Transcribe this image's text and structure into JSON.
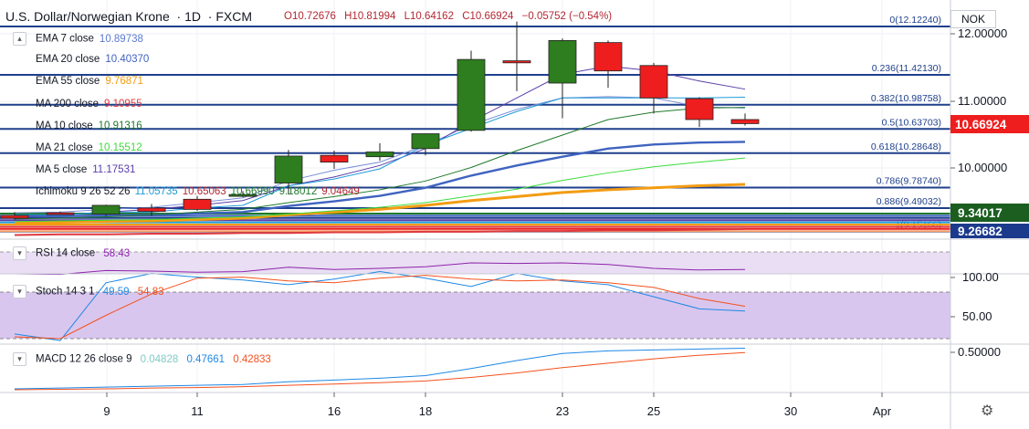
{
  "header": {
    "symbol": "U.S. Dollar/Norwegian Krone",
    "interval": "1D",
    "exchange": "FXCM",
    "open": "O10.72676",
    "high": "H10.81994",
    "low": "L10.64162",
    "close": "C10.66924",
    "change": "−0.05752 (−0.54%)"
  },
  "currency": "NOK",
  "legend": [
    {
      "label": "EMA 7 close",
      "value": "10.89738",
      "color": "#5b7bd0"
    },
    {
      "label": "EMA 20 close",
      "value": "10.40370",
      "color": "#3f63c0"
    },
    {
      "label": "EMA 55 close",
      "value": "9.76871",
      "color": "#f39c12"
    },
    {
      "label": "MA 200 close",
      "value": "9.10955",
      "color": "#e0393e"
    },
    {
      "label": "MA 10 close",
      "value": "10.91316",
      "color": "#1f7a2a"
    },
    {
      "label": "MA 21 close",
      "value": "10.15512",
      "color": "#3bdc3b"
    },
    {
      "label": "MA 5 close",
      "value": "11.17531",
      "color": "#5b3ea8"
    }
  ],
  "ichimoku": {
    "label": "Ichimoku 9 26 52 26",
    "values": [
      {
        "v": "11.05735",
        "color": "#1e9bd7"
      },
      {
        "v": "10.65063",
        "color": "#b22833"
      },
      {
        "v": "10.66990",
        "color": "#1f7a2a"
      },
      {
        "v": "9.18012",
        "color": "#1f7a2a"
      },
      {
        "v": "9.04649",
        "color": "#b22833"
      }
    ]
  },
  "fib_levels": [
    {
      "label": "0(12.12240)",
      "price": 12.1224
    },
    {
      "label": "0.236(11.42130)",
      "price": 11.4213
    },
    {
      "label": "0.382(10.98758)",
      "price": 10.98758
    },
    {
      "label": "0.5(10.63703)",
      "price": 10.63703
    },
    {
      "label": "0.618(10.28648)",
      "price": 10.28648
    },
    {
      "label": "0.786(9.78740)",
      "price": 9.7874
    },
    {
      "label": "0.886(9.49032)",
      "price": 9.49032
    },
    {
      "label": "1(9.15166)",
      "price": 9.15166
    }
  ],
  "price_axis": {
    "ticks": [
      "12.00000",
      "11.00000",
      "10.00000"
    ],
    "last_price": "10.66924",
    "badge_green": "9.34017",
    "badge_red": "9.26682"
  },
  "rsi": {
    "label": "RSI 14 close",
    "value": "58.43",
    "color": "#8e24aa"
  },
  "stoch": {
    "label": "Stoch 14 3 1",
    "k": "49.59",
    "d": "54.83",
    "axis": [
      "100.00",
      "50.00"
    ]
  },
  "macd": {
    "label": "MACD 12 26 close 9",
    "hist": "0.04828",
    "macd": "0.47661",
    "signal": "0.42833",
    "axis": [
      "0.50000"
    ]
  },
  "time_axis": [
    "9",
    "11",
    "16",
    "18",
    "23",
    "25",
    "30",
    "Apr"
  ],
  "colors": {
    "up": "#2e7d1f",
    "down": "#ee1e1e",
    "fib": "#1e3f8c"
  },
  "candles": [
    {
      "o": 9.31,
      "h": 9.36,
      "l": 9.25,
      "c": 9.27
    },
    {
      "o": 9.35,
      "h": 9.37,
      "l": 9.32,
      "c": 9.34
    },
    {
      "o": 9.33,
      "h": 9.47,
      "l": 9.3,
      "c": 9.46
    },
    {
      "o": 9.42,
      "h": 9.48,
      "l": 9.3,
      "c": 9.37
    },
    {
      "o": 9.55,
      "h": 9.6,
      "l": 9.38,
      "c": 9.4
    },
    {
      "o": 9.62,
      "h": 9.67,
      "l": 9.58,
      "c": 9.62
    },
    {
      "o": 9.79,
      "h": 10.28,
      "l": 9.62,
      "c": 10.19
    },
    {
      "o": 10.2,
      "h": 10.27,
      "l": 10.0,
      "c": 10.1
    },
    {
      "o": 10.18,
      "h": 10.38,
      "l": 10.12,
      "c": 10.25
    },
    {
      "o": 10.3,
      "h": 10.52,
      "l": 10.2,
      "c": 10.52
    },
    {
      "o": 10.57,
      "h": 11.75,
      "l": 10.55,
      "c": 11.62
    },
    {
      "o": 11.6,
      "h": 12.18,
      "l": 11.15,
      "c": 11.57
    },
    {
      "o": 11.27,
      "h": 11.93,
      "l": 10.75,
      "c": 11.9
    },
    {
      "o": 11.87,
      "h": 11.9,
      "l": 11.2,
      "c": 11.45
    },
    {
      "o": 11.53,
      "h": 11.57,
      "l": 10.82,
      "c": 11.05
    },
    {
      "o": 11.04,
      "h": 11.06,
      "l": 10.62,
      "c": 10.73
    },
    {
      "o": 10.73,
      "h": 10.82,
      "l": 10.64,
      "c": 10.67
    }
  ],
  "ma_series": {
    "ema7": [
      9.35,
      9.36,
      9.4,
      9.43,
      9.5,
      9.57,
      9.82,
      9.98,
      10.1,
      10.35,
      10.65,
      10.88,
      11.05,
      11.07,
      11.05,
      10.92,
      10.9
    ],
    "ema20": [
      9.3,
      9.3,
      9.31,
      9.32,
      9.34,
      9.36,
      9.45,
      9.52,
      9.6,
      9.72,
      9.9,
      10.05,
      10.18,
      10.3,
      10.36,
      10.39,
      10.4
    ],
    "ema55": [
      9.2,
      9.21,
      9.22,
      9.23,
      9.25,
      9.27,
      9.32,
      9.36,
      9.4,
      9.46,
      9.53,
      9.59,
      9.65,
      9.69,
      9.72,
      9.75,
      9.77
    ],
    "ma200": [
      9.02,
      9.03,
      9.03,
      9.04,
      9.04,
      9.05,
      9.05,
      9.06,
      9.06,
      9.07,
      9.07,
      9.08,
      9.08,
      9.09,
      9.09,
      9.1,
      9.11
    ],
    "ma10": [
      9.26,
      9.27,
      9.29,
      9.32,
      9.36,
      9.4,
      9.5,
      9.59,
      9.69,
      9.82,
      10.02,
      10.27,
      10.5,
      10.73,
      10.84,
      10.9,
      10.91
    ],
    "ma21": [
      9.22,
      9.23,
      9.24,
      9.25,
      9.27,
      9.29,
      9.33,
      9.38,
      9.43,
      9.5,
      9.6,
      9.7,
      9.83,
      9.94,
      10.03,
      10.1,
      10.16
    ],
    "ma5": [
      9.3,
      9.32,
      9.36,
      9.4,
      9.46,
      9.53,
      9.75,
      9.88,
      10.05,
      10.3,
      10.7,
      11.05,
      11.4,
      11.52,
      11.45,
      11.3,
      11.18
    ],
    "tenkan": [
      9.32,
      9.32,
      9.36,
      9.36,
      9.42,
      9.46,
      9.75,
      9.85,
      10.0,
      10.35,
      10.6,
      10.85,
      11.05,
      11.05,
      11.05,
      11.05,
      11.06
    ]
  },
  "rsi_series": [
    50,
    49,
    56,
    55,
    53,
    54,
    62,
    58,
    60,
    63,
    70,
    69,
    70,
    67,
    60,
    57,
    58
  ],
  "stoch_k": [
    25,
    18,
    80,
    90,
    86,
    83,
    78,
    84,
    92,
    85,
    76,
    90,
    82,
    78,
    65,
    52,
    49.6
  ],
  "stoch_d": [
    22,
    20,
    45,
    68,
    85,
    86,
    82,
    80,
    85,
    88,
    84,
    82,
    83,
    80,
    75,
    63,
    54.8
  ],
  "macd_line": [
    0.02,
    0.03,
    0.04,
    0.05,
    0.06,
    0.07,
    0.1,
    0.12,
    0.14,
    0.17,
    0.25,
    0.34,
    0.42,
    0.45,
    0.46,
    0.47,
    0.48
  ],
  "signal_line": [
    0.01,
    0.015,
    0.02,
    0.03,
    0.035,
    0.045,
    0.06,
    0.075,
    0.09,
    0.11,
    0.15,
    0.2,
    0.26,
    0.31,
    0.36,
    0.4,
    0.43
  ]
}
